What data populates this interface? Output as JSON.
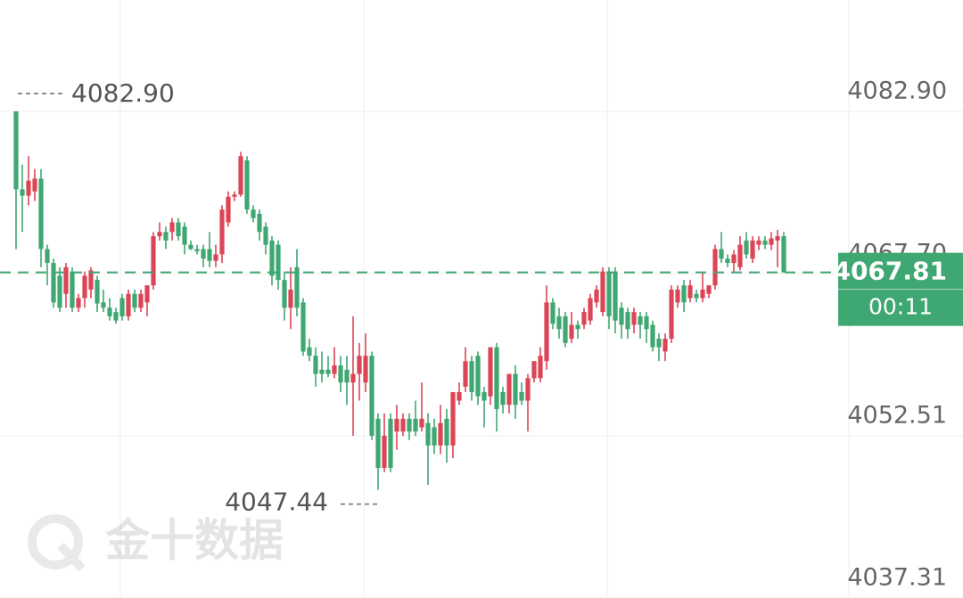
{
  "chart_data": {
    "type": "candlestick",
    "up_color": "#dc4556",
    "down_color": "#3fa771",
    "ylim": [
      4037.31,
      4093.33
    ],
    "yticks": [
      {
        "value": 4082.9,
        "label": "4082.90"
      },
      {
        "value": 4067.7,
        "label": "4067.70"
      },
      4052.51,
      4037.31
    ],
    "grid": true,
    "high_label": {
      "value": 4082.9,
      "label": "4082.90"
    },
    "low_label": 4047.44,
    "current_price": 4067.81,
    "countdown": "00:11",
    "watermark": "金十数据",
    "candles": [
      [
        4082.9,
        4082.9,
        4070.0,
        4075.6
      ],
      [
        4075.6,
        4077.9,
        4071.6,
        4075.0
      ],
      [
        4075.0,
        4078.7,
        4074.1,
        4076.4
      ],
      [
        4075.4,
        4077.5,
        4074.5,
        4076.6
      ],
      [
        4076.6,
        4077.5,
        4068.3,
        4070.0
      ],
      [
        4070.0,
        4070.4,
        4066.6,
        4068.7
      ],
      [
        4068.7,
        4069.1,
        4064.5,
        4065.0
      ],
      [
        4067.5,
        4068.3,
        4064.1,
        4064.5
      ],
      [
        4065.8,
        4068.7,
        4064.5,
        4068.3
      ],
      [
        4067.9,
        4068.3,
        4064.1,
        4064.5
      ],
      [
        4064.5,
        4065.8,
        4064.1,
        4065.4
      ],
      [
        4065.4,
        4067.9,
        4064.5,
        4067.5
      ],
      [
        4066.2,
        4068.3,
        4065.4,
        4068.0
      ],
      [
        4067.1,
        4067.5,
        4064.1,
        4064.9
      ],
      [
        4065.0,
        4066.2,
        4064.1,
        4064.5
      ],
      [
        4064.5,
        4065.4,
        4063.3,
        4063.7
      ],
      [
        4064.1,
        4064.5,
        4063.0,
        4063.3
      ],
      [
        4065.4,
        4065.8,
        4063.3,
        4063.7
      ],
      [
        4063.7,
        4066.2,
        4063.3,
        4065.8
      ],
      [
        4065.8,
        4066.2,
        4064.1,
        4064.5
      ],
      [
        4064.5,
        4066.2,
        4064.1,
        4065.8
      ],
      [
        4065.0,
        4066.6,
        4063.7,
        4066.6
      ],
      [
        4066.6,
        4071.6,
        4066.2,
        4071.2
      ],
      [
        4071.2,
        4072.5,
        4070.8,
        4071.6
      ],
      [
        4071.6,
        4072.1,
        4070.0,
        4070.8
      ],
      [
        4071.6,
        4072.9,
        4070.8,
        4072.5
      ],
      [
        4072.5,
        4072.9,
        4070.8,
        4071.2
      ],
      [
        4072.1,
        4072.5,
        4069.5,
        4070.4
      ],
      [
        4070.4,
        4070.8,
        4069.9,
        4070.0
      ],
      [
        4070.0,
        4070.4,
        4069.5,
        4069.8
      ],
      [
        4070.0,
        4070.4,
        4068.3,
        4069.1
      ],
      [
        4070.0,
        4071.6,
        4068.3,
        4068.9
      ],
      [
        4068.9,
        4070.4,
        4068.3,
        4069.5
      ],
      [
        4069.5,
        4074.1,
        4068.7,
        4073.7
      ],
      [
        4072.5,
        4075.4,
        4072.1,
        4074.9
      ],
      [
        4074.9,
        4075.4,
        4074.5,
        4075.1
      ],
      [
        4075.1,
        4079.1,
        4074.9,
        4078.7
      ],
      [
        4078.3,
        4078.7,
        4073.3,
        4073.7
      ],
      [
        4073.7,
        4074.1,
        4072.5,
        4072.9
      ],
      [
        4073.3,
        4073.7,
        4070.8,
        4071.6
      ],
      [
        4072.1,
        4072.5,
        4069.5,
        4070.4
      ],
      [
        4070.8,
        4071.2,
        4066.6,
        4067.5
      ],
      [
        4070.4,
        4070.8,
        4066.2,
        4067.1
      ],
      [
        4067.1,
        4067.9,
        4063.3,
        4064.5
      ],
      [
        4064.5,
        4068.3,
        4062.5,
        4066.2
      ],
      [
        4068.3,
        4070.0,
        4063.7,
        4064.5
      ],
      [
        4065.0,
        4065.4,
        4060.0,
        4060.4
      ],
      [
        4060.8,
        4061.6,
        4059.5,
        4060.0
      ],
      [
        4060.0,
        4060.8,
        4057.1,
        4058.3
      ],
      [
        4058.7,
        4060.4,
        4057.5,
        4058.3
      ],
      [
        4058.7,
        4060.0,
        4058.0,
        4058.3
      ],
      [
        4058.3,
        4060.8,
        4057.9,
        4059.1
      ],
      [
        4059.1,
        4060.0,
        4056.6,
        4057.5
      ],
      [
        4058.7,
        4060.0,
        4055.4,
        4057.5
      ],
      [
        4057.5,
        4063.7,
        4052.5,
        4058.3
      ],
      [
        4058.3,
        4061.2,
        4055.8,
        4060.0
      ],
      [
        4057.5,
        4062.1,
        4056.6,
        4060.0
      ],
      [
        4060.0,
        4060.4,
        4052.1,
        4052.5
      ],
      [
        4054.1,
        4054.6,
        4047.44,
        4049.5
      ],
      [
        4049.5,
        4054.6,
        4049.1,
        4052.5
      ],
      [
        4054.1,
        4054.6,
        4049.1,
        4049.5
      ],
      [
        4052.9,
        4055.4,
        4051.2,
        4054.1
      ],
      [
        4052.9,
        4054.6,
        4052.5,
        4054.1
      ],
      [
        4054.1,
        4054.6,
        4052.1,
        4052.9
      ],
      [
        4054.1,
        4055.8,
        4052.5,
        4052.9
      ],
      [
        4053.3,
        4057.5,
        4052.9,
        4054.1
      ],
      [
        4053.7,
        4054.6,
        4047.9,
        4051.6
      ],
      [
        4053.3,
        4054.1,
        4050.8,
        4051.6
      ],
      [
        4051.6,
        4055.4,
        4050.8,
        4053.7
      ],
      [
        4054.1,
        4055.0,
        4050.0,
        4051.6
      ],
      [
        4051.6,
        4056.6,
        4050.4,
        4056.6
      ],
      [
        4055.8,
        4057.5,
        4055.4,
        4056.6
      ],
      [
        4057.1,
        4060.8,
        4056.6,
        4059.5
      ],
      [
        4059.5,
        4060.0,
        4055.8,
        4056.6
      ],
      [
        4060.0,
        4060.4,
        4055.4,
        4056.2
      ],
      [
        4056.6,
        4057.1,
        4053.3,
        4055.8
      ],
      [
        4056.2,
        4060.8,
        4055.4,
        4060.8
      ],
      [
        4060.8,
        4061.2,
        4052.9,
        4055.0
      ],
      [
        4056.6,
        4057.1,
        4054.6,
        4055.4
      ],
      [
        4055.4,
        4058.3,
        4054.6,
        4058.3
      ],
      [
        4058.3,
        4059.1,
        4054.1,
        4055.4
      ],
      [
        4056.6,
        4057.5,
        4055.4,
        4055.8
      ],
      [
        4055.8,
        4058.3,
        4052.9,
        4057.9
      ],
      [
        4057.9,
        4059.5,
        4057.5,
        4059.5
      ],
      [
        4057.9,
        4060.8,
        4057.5,
        4060.0
      ],
      [
        4059.5,
        4066.6,
        4058.7,
        4065.0
      ],
      [
        4065.0,
        4065.4,
        4062.5,
        4063.0
      ],
      [
        4063.7,
        4064.5,
        4061.6,
        4062.5
      ],
      [
        4063.7,
        4064.1,
        4060.8,
        4061.2
      ],
      [
        4061.6,
        4064.1,
        4061.2,
        4062.9
      ],
      [
        4062.9,
        4063.3,
        4061.6,
        4062.5
      ],
      [
        4062.9,
        4064.5,
        4062.5,
        4064.1
      ],
      [
        4063.3,
        4065.8,
        4062.9,
        4065.4
      ],
      [
        4065.0,
        4066.6,
        4064.5,
        4066.2
      ],
      [
        4064.1,
        4068.3,
        4063.7,
        4067.9
      ],
      [
        4067.9,
        4068.3,
        4062.5,
        4063.7
      ],
      [
        4067.9,
        4068.3,
        4062.1,
        4063.3
      ],
      [
        4064.5,
        4065.0,
        4061.6,
        4062.9
      ],
      [
        4064.1,
        4064.5,
        4061.6,
        4062.5
      ],
      [
        4062.9,
        4064.5,
        4062.1,
        4064.1
      ],
      [
        4063.7,
        4064.1,
        4061.6,
        4062.9
      ],
      [
        4063.7,
        4064.1,
        4061.2,
        4062.5
      ],
      [
        4062.9,
        4063.3,
        4060.4,
        4060.8
      ],
      [
        4061.6,
        4062.1,
        4059.5,
        4060.8
      ],
      [
        4060.4,
        4062.1,
        4059.5,
        4061.6
      ],
      [
        4061.6,
        4066.6,
        4061.2,
        4066.2
      ],
      [
        4065.0,
        4066.6,
        4064.5,
        4066.2
      ],
      [
        4066.6,
        4067.1,
        4064.1,
        4065.0
      ],
      [
        4065.4,
        4067.1,
        4065.0,
        4066.6
      ],
      [
        4065.8,
        4066.2,
        4065.0,
        4065.4
      ],
      [
        4065.4,
        4067.9,
        4065.0,
        4066.2
      ],
      [
        4065.8,
        4066.6,
        4065.4,
        4066.6
      ],
      [
        4066.6,
        4070.4,
        4066.2,
        4070.0
      ],
      [
        4070.0,
        4071.6,
        4068.7,
        4069.1
      ],
      [
        4069.1,
        4069.5,
        4068.3,
        4068.7
      ],
      [
        4068.7,
        4069.9,
        4067.9,
        4069.5
      ],
      [
        4068.3,
        4071.2,
        4068.0,
        4070.4
      ],
      [
        4070.8,
        4071.6,
        4069.1,
        4069.5
      ],
      [
        4069.1,
        4071.2,
        4068.7,
        4070.8
      ],
      [
        4070.4,
        4071.2,
        4069.9,
        4070.8
      ],
      [
        4070.8,
        4071.2,
        4070.0,
        4070.4
      ],
      [
        4070.4,
        4071.6,
        4069.9,
        4071.0
      ],
      [
        4070.8,
        4071.8,
        4068.3,
        4071.2
      ],
      [
        4071.2,
        4071.6,
        4067.81,
        4067.81
      ]
    ]
  }
}
